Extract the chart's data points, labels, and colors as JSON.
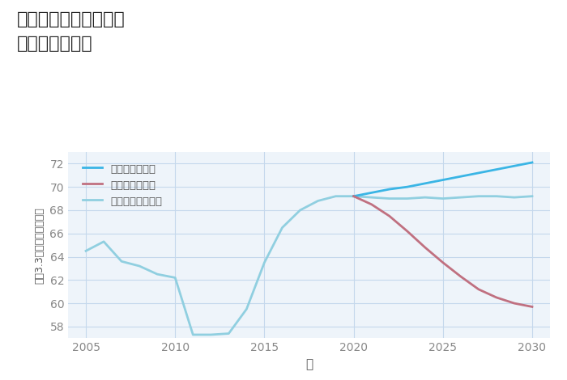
{
  "title": "大阪府茨木市橋の内の\n土地の価格推移",
  "xlabel": "年",
  "ylabel": "平（3.3㎡）単価（万円）",
  "xlim": [
    2004,
    2031
  ],
  "ylim": [
    57,
    73
  ],
  "yticks": [
    58,
    60,
    62,
    64,
    66,
    68,
    70,
    72
  ],
  "xticks": [
    2005,
    2010,
    2015,
    2020,
    2025,
    2030
  ],
  "background_color": "#eef4fa",
  "grid_color": "#c5d8ec",
  "title_color": "#222222",
  "good_scenario": {
    "label": "グッドシナリオ",
    "color": "#3ab5e5",
    "x": [
      2020,
      2021,
      2022,
      2023,
      2024,
      2025,
      2026,
      2027,
      2028,
      2029,
      2030
    ],
    "y": [
      69.2,
      69.5,
      69.8,
      70.0,
      70.3,
      70.6,
      70.9,
      71.2,
      71.5,
      71.8,
      72.1
    ]
  },
  "bad_scenario": {
    "label": "バッドシナリオ",
    "color": "#c07080",
    "x": [
      2020,
      2021,
      2022,
      2023,
      2024,
      2025,
      2026,
      2027,
      2028,
      2029,
      2030
    ],
    "y": [
      69.2,
      68.5,
      67.5,
      66.2,
      64.8,
      63.5,
      62.3,
      61.2,
      60.5,
      60.0,
      59.7
    ]
  },
  "normal_scenario": {
    "label": "ノーマルシナリオ",
    "color": "#90cfe0",
    "x": [
      2005,
      2006,
      2007,
      2008,
      2009,
      2010,
      2011,
      2012,
      2013,
      2014,
      2015,
      2016,
      2017,
      2018,
      2019,
      2020,
      2021,
      2022,
      2023,
      2024,
      2025,
      2026,
      2027,
      2028,
      2029,
      2030
    ],
    "y": [
      64.5,
      65.3,
      63.6,
      63.2,
      62.5,
      62.2,
      57.3,
      57.3,
      57.4,
      59.5,
      63.5,
      66.5,
      68.0,
      68.8,
      69.2,
      69.2,
      69.1,
      69.0,
      69.0,
      69.1,
      69.0,
      69.1,
      69.2,
      69.2,
      69.1,
      69.2
    ]
  }
}
